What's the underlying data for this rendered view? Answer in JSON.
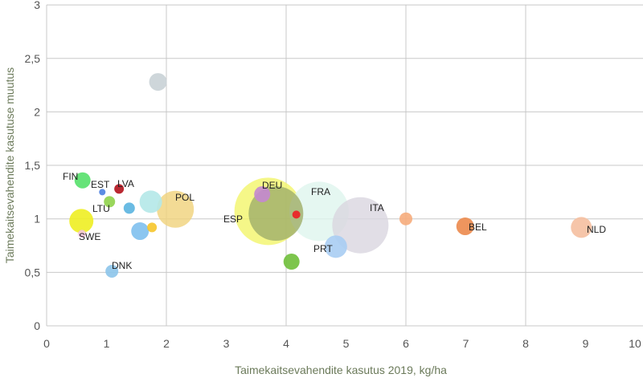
{
  "chart_data": {
    "type": "bubble",
    "title": "",
    "xlabel": "Taimekaitsevahendite kasutus 2019, kg/ha",
    "ylabel": "Taimekaitsevahendite kasutuse muutus",
    "xlim": [
      0,
      10
    ],
    "ylim": [
      0,
      3
    ],
    "xticks": [
      "0",
      "1",
      "2",
      "3",
      "4",
      "5",
      "6",
      "7",
      "8",
      "9",
      "10"
    ],
    "yticks": [
      "0",
      "0,5",
      "1",
      "1,5",
      "2",
      "2,5",
      "3"
    ],
    "grid": "major gridlines at every 2 on x and every 0,5 on y",
    "points": [
      {
        "label": "",
        "x": 1.86,
        "y": 2.28,
        "size": 11,
        "color": "#c9d1d6"
      },
      {
        "label": "ESP",
        "x": 3.7,
        "y": 1.07,
        "size": 42,
        "color": "#f3f56a"
      },
      {
        "label": "FRA",
        "x": 4.55,
        "y": 1.07,
        "size": 37,
        "color": "#dff5ee"
      },
      {
        "label": "ITA",
        "x": 5.24,
        "y": 0.94,
        "size": 35,
        "color": "#d9d6e0"
      },
      {
        "label": "",
        "x": 3.83,
        "y": 1.05,
        "size": 34,
        "color": "#9fae6a"
      },
      {
        "label": "POL",
        "x": 2.15,
        "y": 1.09,
        "size": 23,
        "color": "#f0d27a"
      },
      {
        "label": "",
        "x": 1.74,
        "y": 1.16,
        "size": 14,
        "color": "#b4e8e8"
      },
      {
        "label": "",
        "x": 0.58,
        "y": 0.98,
        "size": 15,
        "color": "#eeee22"
      },
      {
        "label": "SWE",
        "x": 0.59,
        "y": 0.86,
        "size": 5,
        "color": "#f2c6dc"
      },
      {
        "label": "FIN",
        "x": 0.6,
        "y": 1.36,
        "size": 10,
        "color": "#55e06a"
      },
      {
        "label": "EST",
        "x": 0.93,
        "y": 1.25,
        "size": 4,
        "color": "#4a7fe0"
      },
      {
        "label": "LVA",
        "x": 1.21,
        "y": 1.28,
        "size": 6,
        "color": "#b3121c"
      },
      {
        "label": "LTU",
        "x": 1.05,
        "y": 1.16,
        "size": 7,
        "color": "#8fd24a"
      },
      {
        "label": "",
        "x": 1.38,
        "y": 1.1,
        "size": 7,
        "color": "#5ab4e0"
      },
      {
        "label": "",
        "x": 1.56,
        "y": 0.885,
        "size": 11,
        "color": "#7ec0ee"
      },
      {
        "label": "",
        "x": 1.76,
        "y": 0.92,
        "size": 6,
        "color": "#f6c52a"
      },
      {
        "label": "DNK",
        "x": 1.09,
        "y": 0.51,
        "size": 8,
        "color": "#8cc4ea"
      },
      {
        "label": "DEU",
        "x": 3.6,
        "y": 1.23,
        "size": 10,
        "color": "#c487d0"
      },
      {
        "label": "",
        "x": 4.17,
        "y": 1.04,
        "size": 5,
        "color": "#ee1c24"
      },
      {
        "label": "PRT",
        "x": 4.83,
        "y": 0.74,
        "size": 14,
        "color": "#a9cdf3"
      },
      {
        "label": "",
        "x": 4.09,
        "y": 0.6,
        "size": 10,
        "color": "#6fbf3a"
      },
      {
        "label": "",
        "x": 6.0,
        "y": 1.0,
        "size": 8,
        "color": "#f6ac7c"
      },
      {
        "label": "BEL",
        "x": 6.99,
        "y": 0.93,
        "size": 11,
        "color": "#ec8a4c"
      },
      {
        "label": "NLD",
        "x": 8.93,
        "y": 0.92,
        "size": 13,
        "color": "#f5bfa0"
      }
    ]
  },
  "colors": {
    "grid": "#c8c8c8",
    "axis_title": "#6b7a5a",
    "tick": "#555555",
    "label": "#222222"
  }
}
